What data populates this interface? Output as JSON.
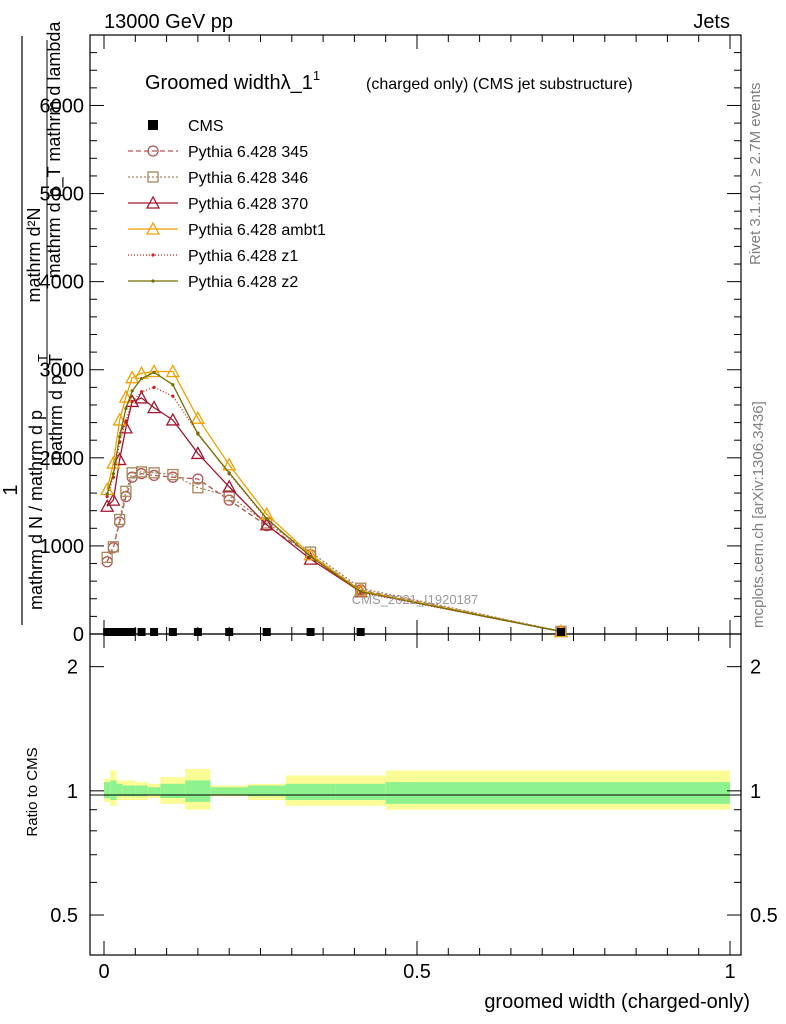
{
  "header": {
    "left": "13000 GeV pp",
    "right": "Jets"
  },
  "chart_data": {
    "type": "line",
    "title_main": "Groomed width",
    "title_symbol": "λ_1",
    "title_sup": "1",
    "title_rest": "(charged only) (CMS jet substructure)",
    "ylabel_top": "1",
    "ylabel_num": "mathrm d²N",
    "ylabel_den": "mathrm d p_T mathrm d lambda",
    "ylabel_bottom_num": "mathrm d N / mathrm d p",
    "ylabel_bottom_sub": "T",
    "ylabel_bottom_den": "mathrm d p_T",
    "xlabel": "groomed width (charged-only)",
    "ratio_ylabel": "Ratio to CMS",
    "side_text_top": "Rivet 3.1.10, ≥ 2.7M events",
    "side_text_bottom": "mcplots.cern.ch [arXiv:1306.3436]",
    "watermark": "CMS_2021_I1920187",
    "xlim": [
      0,
      1
    ],
    "ylim": [
      0,
      6800
    ],
    "ratio_ylim": [
      0.4,
      2.4
    ],
    "xticks": [
      "0",
      "0.5",
      "1"
    ],
    "yticks": [
      "0",
      "1000",
      "2000",
      "3000",
      "4000",
      "5000",
      "6000"
    ],
    "ratio_yticks": [
      "0.5",
      "1",
      "2"
    ],
    "cms_x": [
      0.005,
      0.015,
      0.025,
      0.035,
      0.045,
      0.06,
      0.08,
      0.11,
      0.15,
      0.2,
      0.26,
      0.33,
      0.41,
      0.73
    ],
    "cms_y": [
      0,
      0,
      0,
      0,
      0,
      0,
      0,
      0,
      0,
      0,
      0,
      0,
      0,
      0
    ],
    "x": [
      0.005,
      0.015,
      0.025,
      0.035,
      0.045,
      0.06,
      0.08,
      0.11,
      0.15,
      0.2,
      0.26,
      0.33,
      0.41,
      0.73
    ],
    "series": [
      {
        "name": "Pythia 6.428 345",
        "color": "#b55454",
        "dash": "5,3",
        "marker": "circle",
        "values": [
          820,
          980,
          1270,
          1560,
          1780,
          1820,
          1800,
          1780,
          1760,
          1520,
          1230,
          900,
          500,
          30
        ]
      },
      {
        "name": "Pythia 6.428 346",
        "color": "#a8875a",
        "dash": "2,2",
        "marker": "square",
        "values": [
          870,
          990,
          1300,
          1620,
          1830,
          1840,
          1830,
          1810,
          1660,
          1570,
          1260,
          930,
          520,
          30
        ]
      },
      {
        "name": "Pythia 6.428 370",
        "color": "#a01830",
        "dash": "",
        "marker": "triangle",
        "values": [
          1450,
          1520,
          1980,
          2340,
          2640,
          2680,
          2570,
          2430,
          2050,
          1670,
          1240,
          850,
          480,
          28
        ]
      },
      {
        "name": "Pythia 6.428 ambt1",
        "color": "#f0a000",
        "dash": "",
        "marker": "triangle",
        "values": [
          1640,
          1940,
          2430,
          2690,
          2910,
          2960,
          2980,
          2980,
          2450,
          1920,
          1360,
          900,
          490,
          28
        ]
      },
      {
        "name": "Pythia 6.428 z1",
        "color": "#d02020",
        "dash": "1,2",
        "marker": "dot",
        "values": [
          1560,
          1780,
          2180,
          2420,
          2640,
          2750,
          2800,
          2700,
          2280,
          1820,
          1300,
          880,
          470,
          28
        ]
      },
      {
        "name": "Pythia 6.428 z2",
        "color": "#707000",
        "dash": "",
        "marker": "dot",
        "values": [
          1590,
          1820,
          2240,
          2560,
          2760,
          2900,
          2970,
          2830,
          2270,
          1830,
          1310,
          880,
          480,
          28
        ]
      }
    ],
    "ratio_bands": {
      "edges": [
        0,
        0.01,
        0.02,
        0.03,
        0.04,
        0.05,
        0.07,
        0.09,
        0.13,
        0.17,
        0.23,
        0.29,
        0.37,
        0.45,
        1.0
      ],
      "green": [
        [
          0.96,
          1.05
        ],
        [
          0.95,
          1.06
        ],
        [
          0.97,
          1.04
        ],
        [
          0.97,
          1.03
        ],
        [
          0.97,
          1.03
        ],
        [
          0.97,
          1.03
        ],
        [
          0.98,
          1.02
        ],
        [
          0.96,
          1.04
        ],
        [
          0.94,
          1.06
        ],
        [
          0.98,
          1.02
        ],
        [
          0.97,
          1.03
        ],
        [
          0.95,
          1.04
        ],
        [
          0.95,
          1.04
        ],
        [
          0.93,
          1.05
        ]
      ],
      "yellow": [
        [
          0.94,
          1.07
        ],
        [
          0.92,
          1.12
        ],
        [
          0.95,
          1.06
        ],
        [
          0.95,
          1.06
        ],
        [
          0.95,
          1.06
        ],
        [
          0.95,
          1.05
        ],
        [
          0.96,
          1.04
        ],
        [
          0.93,
          1.08
        ],
        [
          0.9,
          1.13
        ],
        [
          0.97,
          1.03
        ],
        [
          0.95,
          1.04
        ],
        [
          0.92,
          1.09
        ],
        [
          0.92,
          1.09
        ],
        [
          0.9,
          1.12
        ]
      ]
    },
    "band_colors": {
      "green": "#8ef28e",
      "yellow": "#fcfc96"
    },
    "cms_color": "#000000"
  }
}
